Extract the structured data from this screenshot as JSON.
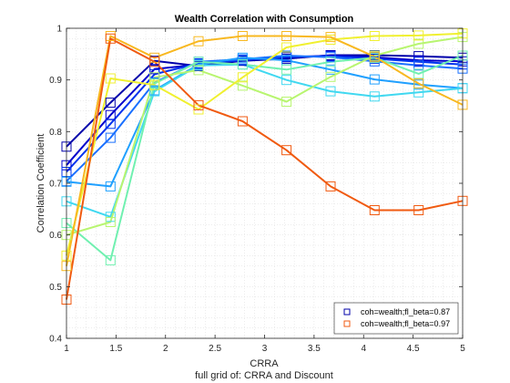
{
  "chart_data": {
    "type": "line",
    "title": "Wealth Correlation with Consumption",
    "xlabel": "CRRA",
    "ylabel": "Correlation Coefficient",
    "caption": "full grid of: CRRA and Discount",
    "xlim": [
      1,
      5
    ],
    "ylim": [
      0.4,
      1
    ],
    "xticks": [
      1,
      1.5,
      2,
      2.5,
      3,
      3.5,
      4,
      4.5,
      5
    ],
    "yticks": [
      0.4,
      0.5,
      0.6,
      0.7,
      0.8,
      0.9,
      1
    ],
    "grid": "minor-dotted",
    "legend_position": "bottom-right",
    "x": [
      1,
      1.444,
      1.889,
      2.333,
      2.778,
      3.222,
      3.667,
      4.111,
      4.556,
      5
    ],
    "series": [
      {
        "name": "coh=wealth;fl_beta=0.87",
        "color": "#0000aa",
        "values": [
          0.771,
          0.856,
          0.937,
          0.927,
          0.937,
          0.941,
          0.948,
          0.948,
          0.946,
          0.943
        ]
      },
      {
        "color": "#0000cc",
        "values": [
          0.735,
          0.832,
          0.921,
          0.93,
          0.94,
          0.944,
          0.947,
          0.944,
          0.938,
          0.936
        ]
      },
      {
        "color": "#0033ee",
        "values": [
          0.722,
          0.815,
          0.911,
          0.932,
          0.938,
          0.945,
          0.946,
          0.941,
          0.935,
          0.93
        ]
      },
      {
        "color": "#1a70ff",
        "values": [
          0.704,
          0.788,
          0.895,
          0.935,
          0.94,
          0.947,
          0.944,
          0.936,
          0.928,
          0.922
        ]
      },
      {
        "color": "#20a0ff",
        "values": [
          0.703,
          0.694,
          0.88,
          0.93,
          0.943,
          0.938,
          0.92,
          0.901,
          0.891,
          0.884
        ]
      },
      {
        "color": "#40d8f0",
        "values": [
          0.665,
          0.635,
          0.878,
          0.928,
          0.93,
          0.9,
          0.878,
          0.868,
          0.876,
          0.884
        ]
      },
      {
        "color": "#70f0b0",
        "values": [
          0.623,
          0.551,
          0.893,
          0.935,
          0.93,
          0.92,
          0.935,
          0.943,
          0.912,
          0.947
        ]
      },
      {
        "color": "#b8f570",
        "values": [
          0.6,
          0.625,
          0.905,
          0.919,
          0.889,
          0.858,
          0.906,
          0.947,
          0.97,
          0.983
        ]
      },
      {
        "color": "#f0f030",
        "values": [
          0.56,
          0.903,
          0.89,
          0.843,
          0.905,
          0.963,
          0.978,
          0.985,
          0.986,
          0.99
        ]
      },
      {
        "color": "#f8b820",
        "values": [
          0.54,
          0.985,
          0.943,
          0.975,
          0.985,
          0.985,
          0.983,
          0.945,
          0.893,
          0.852
        ]
      },
      {
        "name": "coh=wealth;fl_beta=0.97",
        "color": "#f05a10",
        "values": [
          0.475,
          0.98,
          0.935,
          0.851,
          0.82,
          0.764,
          0.694,
          0.648,
          0.648,
          0.666
        ]
      }
    ]
  }
}
